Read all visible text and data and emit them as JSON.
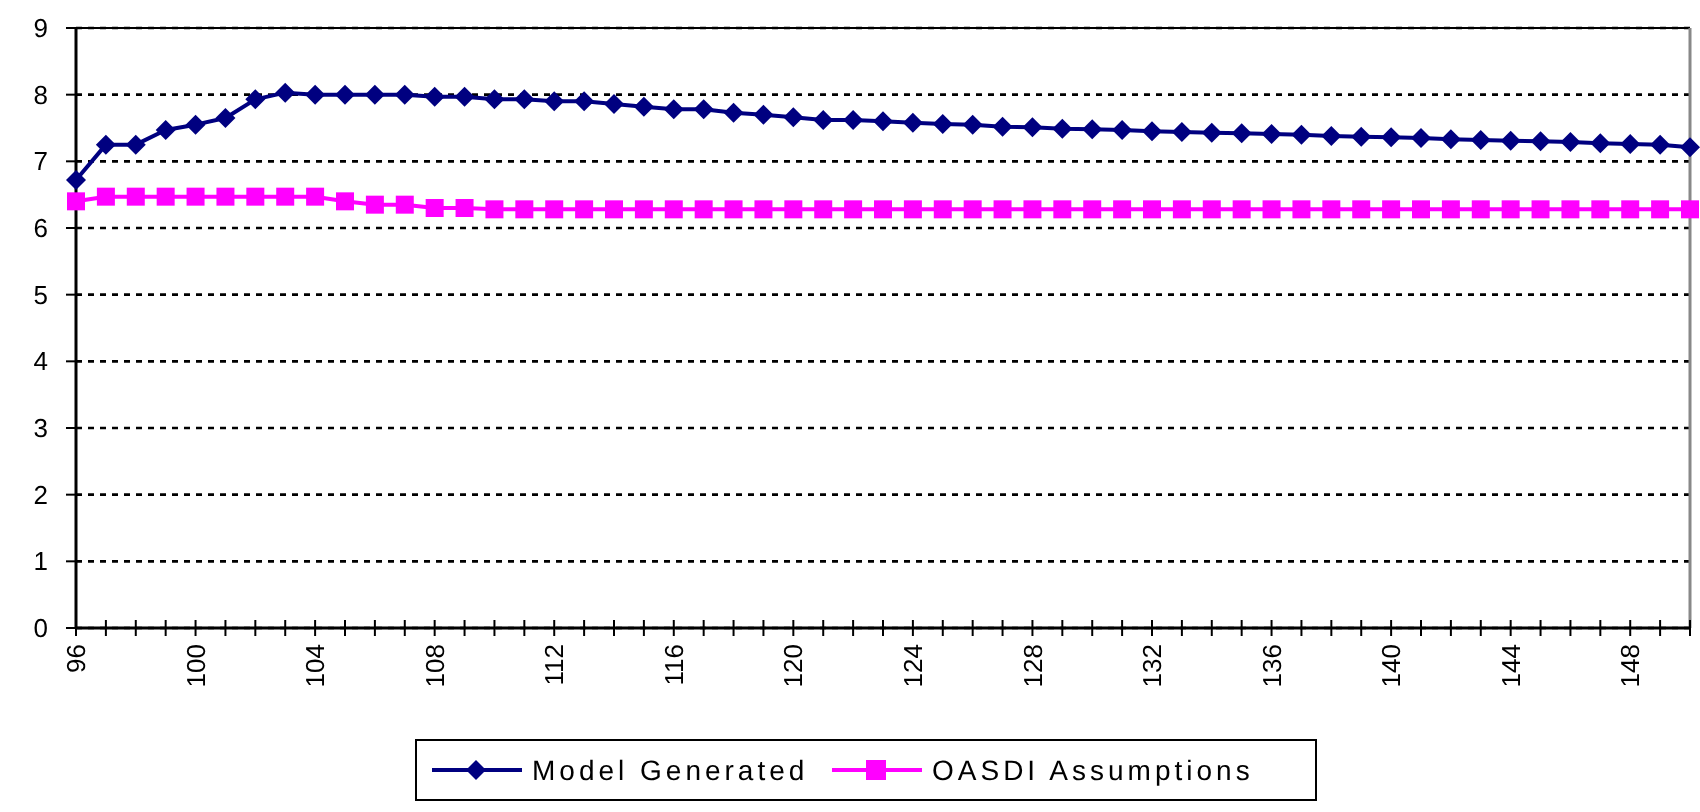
{
  "chart_data": {
    "type": "line",
    "categories": [
      "96",
      null,
      null,
      null,
      "100",
      null,
      null,
      null,
      "104",
      null,
      null,
      null,
      "108",
      null,
      null,
      null,
      "112",
      null,
      null,
      null,
      "116",
      null,
      null,
      null,
      "120",
      null,
      null,
      null,
      "124",
      null,
      null,
      null,
      "128",
      null,
      null,
      null,
      "132",
      null,
      null,
      null,
      "136",
      null,
      null,
      null,
      "140",
      null,
      null,
      null,
      "144",
      null,
      null,
      null,
      "148",
      null,
      null
    ],
    "series": [
      {
        "name": "Model Generated",
        "color": "#000080",
        "marker": "diamond",
        "values": [
          6.72,
          7.25,
          7.25,
          7.47,
          7.55,
          7.65,
          7.93,
          8.03,
          8.0,
          8.0,
          8.0,
          8.0,
          7.97,
          7.97,
          7.93,
          7.93,
          7.9,
          7.9,
          7.86,
          7.82,
          7.78,
          7.78,
          7.73,
          7.7,
          7.66,
          7.62,
          7.62,
          7.6,
          7.58,
          7.56,
          7.55,
          7.52,
          7.51,
          7.49,
          7.48,
          7.47,
          7.45,
          7.44,
          7.43,
          7.42,
          7.41,
          7.4,
          7.38,
          7.37,
          7.36,
          7.35,
          7.33,
          7.32,
          7.31,
          7.3,
          7.29,
          7.27,
          7.26,
          7.25,
          7.21
        ]
      },
      {
        "name": "OASDI Assumptions",
        "color": "#ff00ff",
        "marker": "square",
        "values": [
          6.4,
          6.47,
          6.47,
          6.47,
          6.47,
          6.47,
          6.47,
          6.47,
          6.47,
          6.4,
          6.35,
          6.35,
          6.3,
          6.3,
          6.28,
          6.28,
          6.28,
          6.28,
          6.28,
          6.28,
          6.28,
          6.28,
          6.28,
          6.28,
          6.28,
          6.28,
          6.28,
          6.28,
          6.28,
          6.28,
          6.28,
          6.28,
          6.28,
          6.28,
          6.28,
          6.28,
          6.28,
          6.28,
          6.28,
          6.28,
          6.28,
          6.28,
          6.28,
          6.28,
          6.28,
          6.28,
          6.28,
          6.28,
          6.28,
          6.28,
          6.28,
          6.28,
          6.28,
          6.28,
          6.28
        ]
      }
    ],
    "ylim": [
      0,
      9
    ],
    "yticks": [
      0,
      1,
      2,
      3,
      4,
      5,
      6,
      7,
      8,
      9
    ],
    "grid": "y",
    "legend": "bottom",
    "line_style": "solid"
  }
}
